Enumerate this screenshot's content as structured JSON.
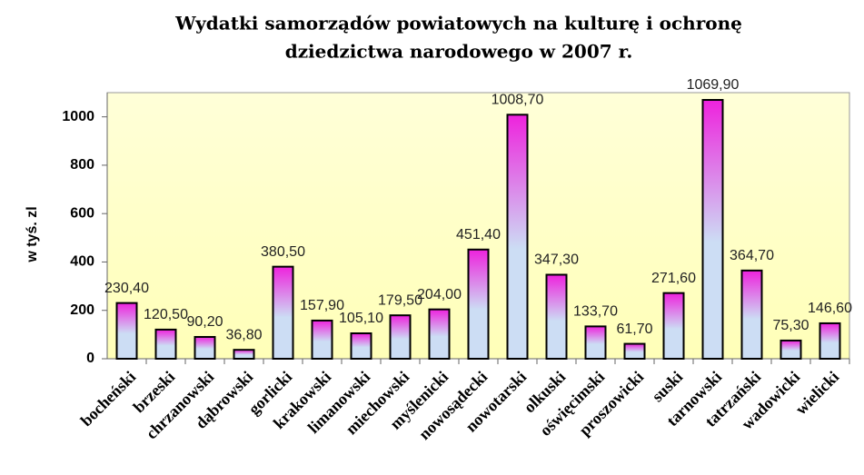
{
  "chart_data": {
    "type": "bar",
    "title": [
      "Wydatki samorządów powiatowych na kulturę i ochronę",
      "dziedzictwa narodowego w 2007 r."
    ],
    "y_label": "w tyś. zl",
    "categories": [
      "bocheński",
      "brzeski",
      "chrzanowski",
      "dąbrowski",
      "gorlicki",
      "krakowski",
      "limanowski",
      "miechowski",
      "myślenicki",
      "nowosądecki",
      "nowotarski",
      "olkuski",
      "oświęcimski",
      "proszowicki",
      "suski",
      "tarnowski",
      "tatrzański",
      "wadowicki",
      "wielicki"
    ],
    "values": [
      230.4,
      120.5,
      90.2,
      36.8,
      380.5,
      157.9,
      105.1,
      179.5,
      204.0,
      451.4,
      1008.7,
      347.3,
      133.7,
      61.7,
      271.6,
      1069.9,
      364.7,
      75.3,
      146.6
    ],
    "value_labels": [
      "230,40",
      "120,50",
      "90,20",
      "36,80",
      "380,50",
      "157,90",
      "105,10",
      "179,50",
      "204,00",
      "451,40",
      "1008,70",
      "347,30",
      "133,70",
      "61,70",
      "271,60",
      "1069,90",
      "364,70",
      "75,30",
      "146,60"
    ],
    "color_top": "#ee22dd",
    "color_bottom": "#ccddf4",
    "ylim": [
      0,
      1100
    ],
    "yticks": [
      0,
      200,
      400,
      600,
      800,
      1000
    ],
    "grid": false
  }
}
